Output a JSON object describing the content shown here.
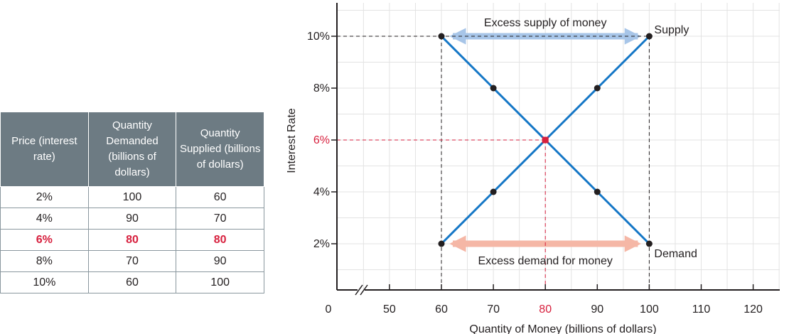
{
  "table": {
    "headers": [
      "Price (interest rate)",
      "Quantity Demanded (billions of dollars)",
      "Quantity Supplied (billions of dollars)"
    ],
    "rows": [
      {
        "rate": "2%",
        "demanded": "100",
        "supplied": "60",
        "highlight": false
      },
      {
        "rate": "4%",
        "demanded": "90",
        "supplied": "70",
        "highlight": false
      },
      {
        "rate": "6%",
        "demanded": "80",
        "supplied": "80",
        "highlight": true
      },
      {
        "rate": "8%",
        "demanded": "70",
        "supplied": "90",
        "highlight": false
      },
      {
        "rate": "10%",
        "demanded": "60",
        "supplied": "100",
        "highlight": false
      }
    ]
  },
  "chart_data": {
    "type": "line",
    "xlabel": "Quantity of Money (billions of dollars)",
    "ylabel": "Interest Rate",
    "x_ticks": [
      0,
      50,
      60,
      70,
      80,
      90,
      100,
      110,
      120
    ],
    "x_tick_labels": [
      "0",
      "50",
      "60",
      "70",
      "80",
      "90",
      "100",
      "110",
      "120"
    ],
    "y_ticks": [
      2,
      4,
      6,
      8,
      10
    ],
    "y_tick_labels": [
      "2%",
      "4%",
      "6%",
      "8%",
      "10%"
    ],
    "axis_break": true,
    "xlim": [
      45,
      125
    ],
    "ylim": [
      0,
      11.3
    ],
    "grid": true,
    "series": [
      {
        "name": "Supply",
        "x": [
          60,
          70,
          80,
          90,
          100
        ],
        "y": [
          2,
          4,
          6,
          8,
          10
        ]
      },
      {
        "name": "Demand",
        "x": [
          60,
          70,
          80,
          90,
          100
        ],
        "y": [
          10,
          8,
          6,
          4,
          2
        ]
      }
    ],
    "equilibrium": {
      "x": 80,
      "y": 6,
      "x_label": "80",
      "y_label": "6%"
    },
    "annotations": [
      {
        "text": "Excess supply of money",
        "y": 10,
        "x_from": 60,
        "x_to": 100
      },
      {
        "text": "Excess demand for money",
        "y": 2,
        "x_from": 60,
        "x_to": 100
      }
    ],
    "colors": {
      "line": "#1577c6",
      "point": "#231f20",
      "equilibrium": "#d71f3d",
      "supply_arrow": "#a7c5e8",
      "demand_arrow": "#f5b7a6",
      "grid": "#e3e3e3",
      "header_bg": "#6d7b83"
    }
  }
}
